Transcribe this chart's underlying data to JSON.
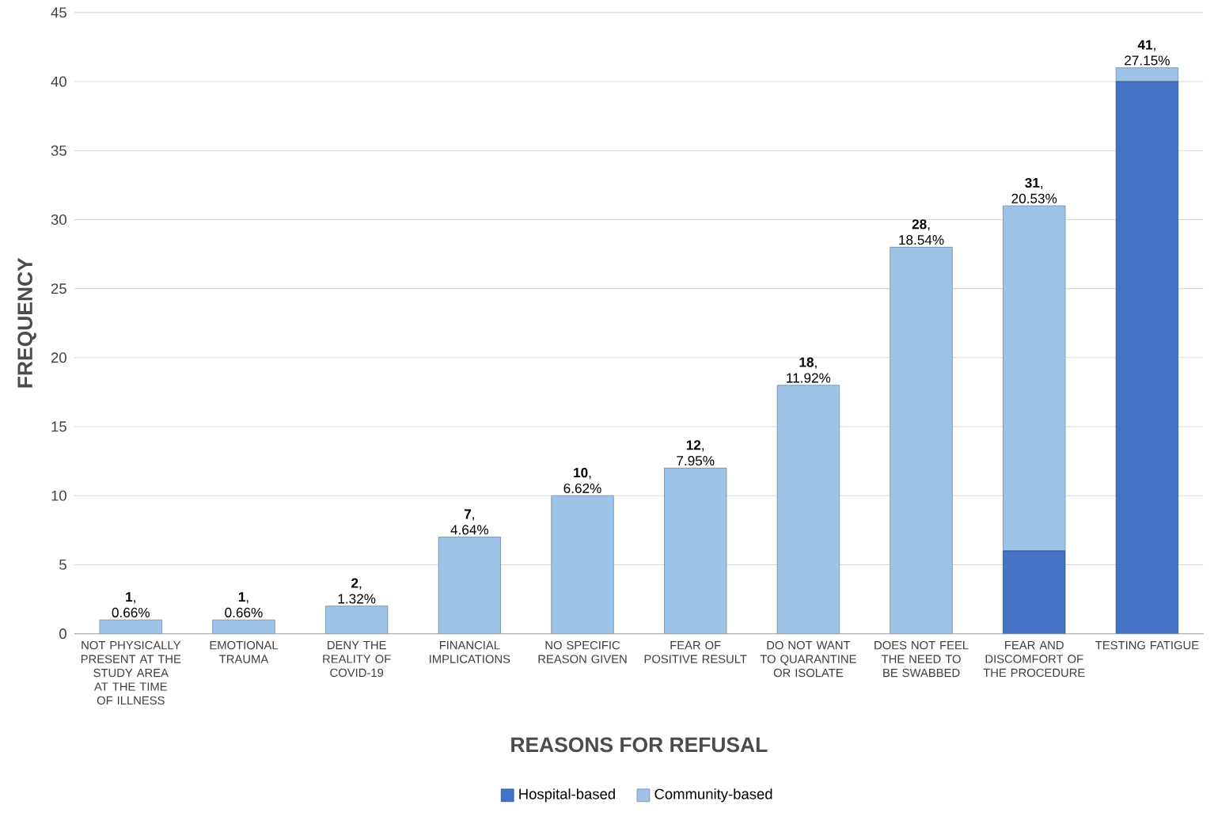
{
  "chart_data": {
    "type": "bar",
    "stacked": true,
    "xlabel": "REASONS FOR REFUSAL",
    "ylabel": "FREQUENCY",
    "categories": [
      "NOT PHYSICALLY PRESENT AT THE STUDY AREA AT THE TIME OF ILLNESS",
      "EMOTIONAL TRAUMA",
      "DENY THE REALITY OF COVID-19",
      "FINANCIAL IMPLICATIONS",
      "NO SPECIFIC REASON GIVEN",
      "FEAR OF POSITIVE RESULT",
      "DO NOT WANT TO QUARANTINE OR ISOLATE",
      "DOES NOT FEEL THE NEED TO BE SWABBED",
      "FEAR AND DISCOMFORT OF THE PROCEDURE",
      "TESTING FATIGUE"
    ],
    "series": [
      {
        "name": "Hospital-based",
        "color": "#4472c4",
        "values": [
          0,
          0,
          0,
          0,
          0,
          0,
          0,
          0,
          6,
          40
        ]
      },
      {
        "name": "Community-based",
        "color": "#9dc3e6",
        "values": [
          1,
          1,
          2,
          7,
          10,
          12,
          18,
          28,
          25,
          1
        ]
      }
    ],
    "totals": [
      "**1**, 0.66%",
      "**1**, 0.66%",
      "**2**, 1.32%",
      "**7**, 4.64%",
      "**10**, 6.62%",
      "**12**, 7.95%",
      "**18**, 11.92%",
      "**28**, 18.54%",
      "**31**, 20.53%",
      "**41**, 27.15%"
    ],
    "ylim": [
      0,
      45
    ],
    "yticks": [
      0,
      5,
      10,
      15,
      20,
      25,
      30,
      35,
      40,
      45
    ],
    "grid": "y",
    "legend": "bottom"
  }
}
